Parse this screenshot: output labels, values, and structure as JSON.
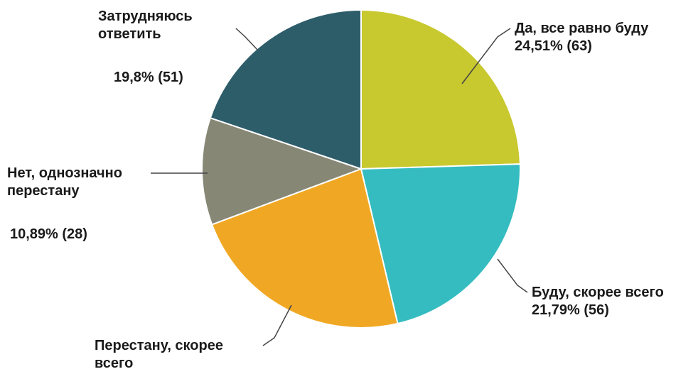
{
  "chart_data": {
    "type": "pie",
    "title": "",
    "start_angle_deg": 0,
    "direction": "clockwise",
    "slices": [
      {
        "label_lines": [
          "Да, все равно буду"
        ],
        "value_text": "24,51% (63)",
        "percent": 24.51,
        "count": 63,
        "color": "#c8c82f"
      },
      {
        "label_lines": [
          "Буду, скорее всего"
        ],
        "value_text": "21,79% (56)",
        "percent": 21.79,
        "count": 56,
        "color": "#35bcc0"
      },
      {
        "label_lines": [
          "Перестану, скорее",
          "всего"
        ],
        "value_text": "",
        "percent": 23.0,
        "count": 59,
        "color": "#f0a824"
      },
      {
        "label_lines": [
          "Нет, однозначно",
          "перестану"
        ],
        "value_text": "10,89% (28)",
        "percent": 10.89,
        "count": 28,
        "color": "#878776"
      },
      {
        "label_lines": [
          "Затрудняюсь",
          "ответить"
        ],
        "value_text": "19,8% (51)",
        "percent": 19.8,
        "count": 51,
        "color": "#2e5d6a"
      }
    ],
    "legend": "none"
  }
}
